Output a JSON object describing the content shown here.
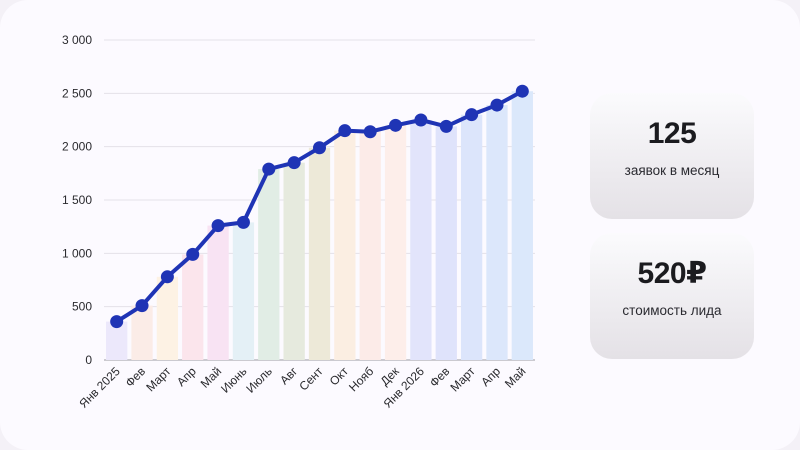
{
  "chart_data": {
    "type": "bar",
    "categories": [
      "Янв 2025",
      "Фев",
      "Март",
      "Апр",
      "Май",
      "Июнь",
      "Июль",
      "Авг",
      "Сент",
      "Окт",
      "Нояб",
      "Дек",
      "Янв 2026",
      "Фев",
      "Март",
      "Апр",
      "Май"
    ],
    "values": [
      360,
      510,
      780,
      990,
      1260,
      1290,
      1790,
      1850,
      1990,
      2150,
      2140,
      2200,
      2250,
      2190,
      2300,
      2390,
      2520
    ],
    "ylim": [
      0,
      3000
    ],
    "yticks": [
      0,
      500,
      1000,
      1500,
      2000,
      2500,
      3000
    ],
    "ytick_labels": [
      "0",
      "500",
      "1 000",
      "1 500",
      "2 000",
      "2 500",
      "3 000"
    ],
    "grid": true,
    "line_color": "#1f34b5",
    "bar_colors": [
      "#ece8fb",
      "#fbece7",
      "#fdf2e4",
      "#fbe5ec",
      "#f8e3f3",
      "#e4f0f6",
      "#e1ede5",
      "#e6eade",
      "#ede9d8",
      "#fbeee2",
      "#fcebe8",
      "#fdeeea",
      "#e2e4fb",
      "#dfe3fb",
      "#dce5fb",
      "#dce7fb",
      "#dbe8fb"
    ]
  },
  "stats": [
    {
      "value": "125",
      "label": "заявок в месяц"
    },
    {
      "value": "520₽",
      "label": "стоимость лида"
    }
  ]
}
